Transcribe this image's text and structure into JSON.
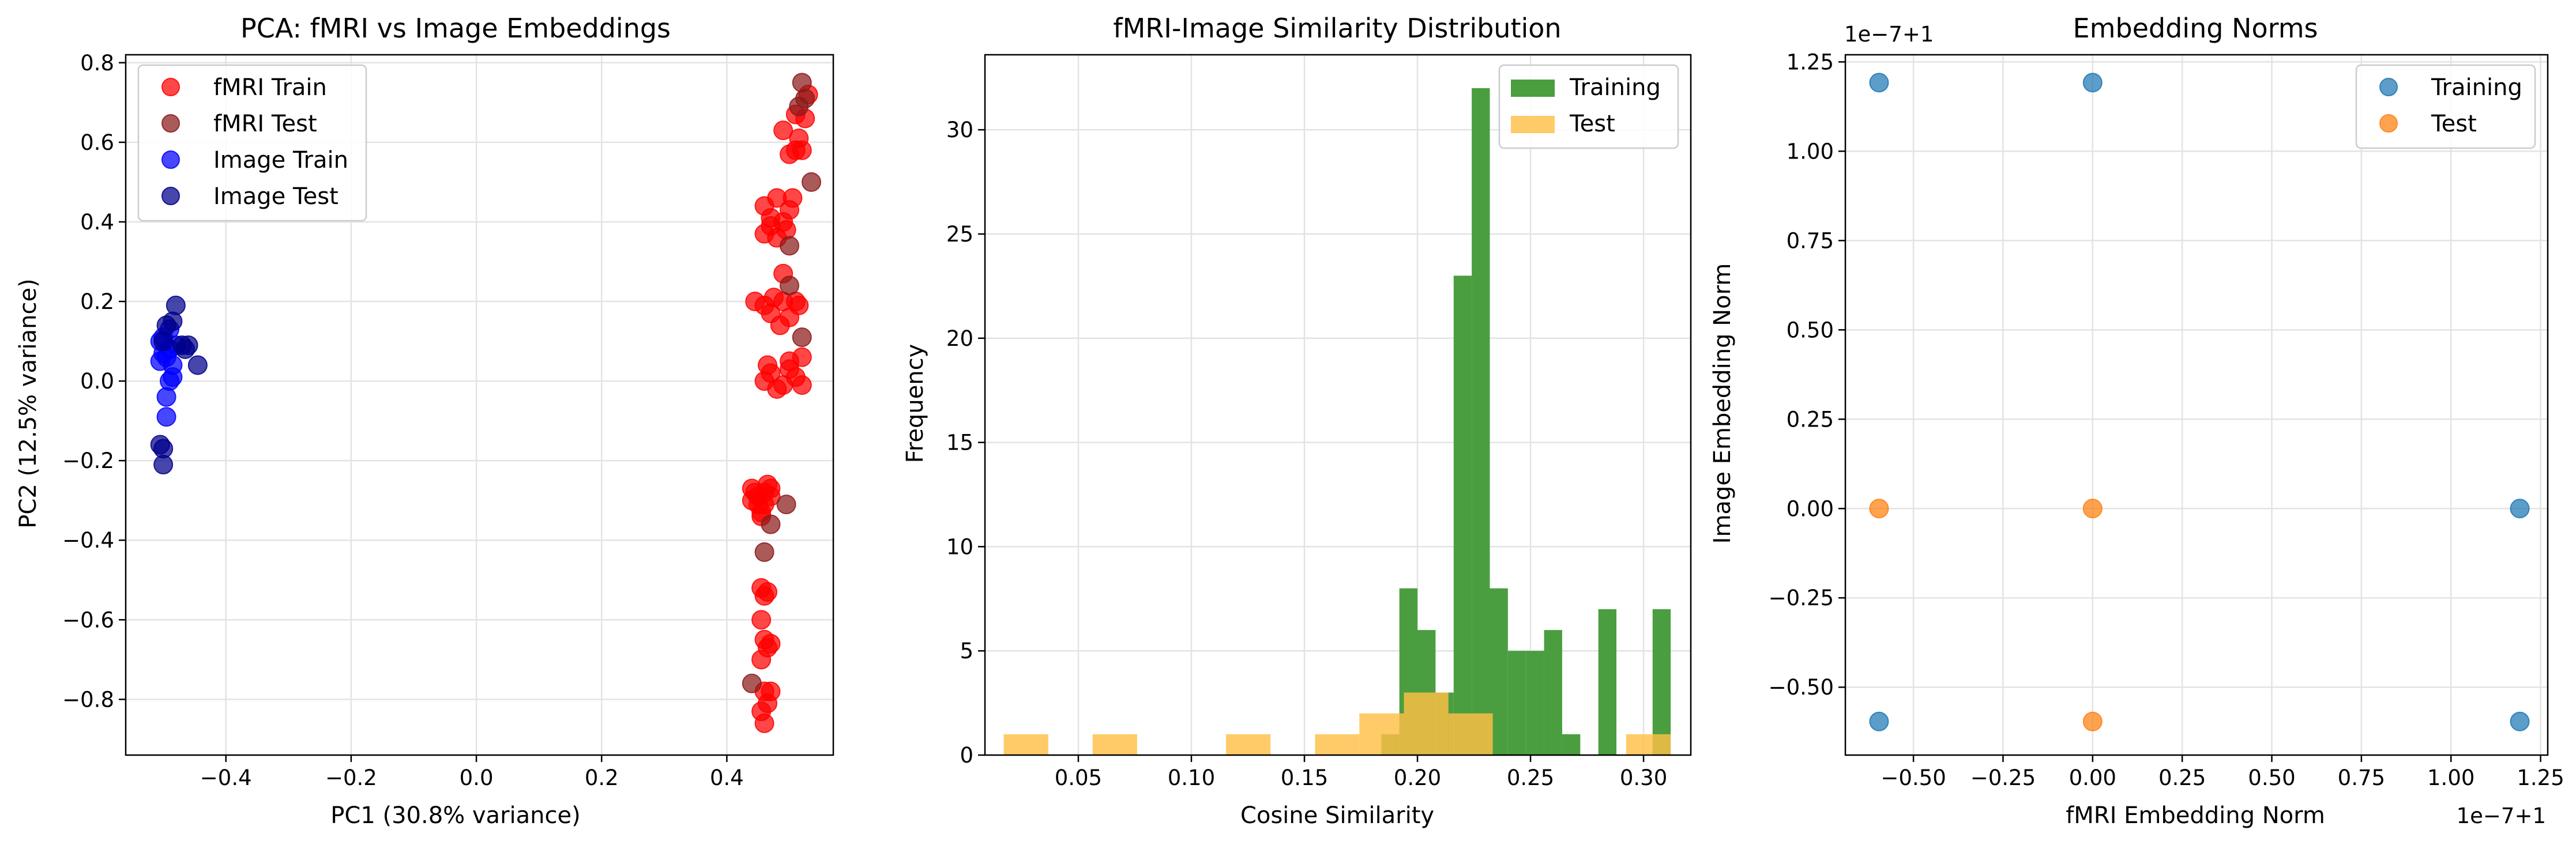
{
  "figure": {
    "charts": [
      {
        "title": "PCA: fMRI vs Image Embeddings",
        "xlabel": "PC1 (30.8% variance)",
        "ylabel": "PC2 (12.5% variance)"
      },
      {
        "title": "fMRI-Image Similarity Distribution",
        "xlabel": "Cosine Similarity",
        "ylabel": "Frequency"
      },
      {
        "title": "Embedding Norms",
        "xlabel": "fMRI Embedding Norm",
        "ylabel": "Image Embedding Norm",
        "x_offset_label": "1e−7+1",
        "y_offset_label": "1e−7+1"
      }
    ]
  },
  "chart_data": [
    {
      "type": "scatter",
      "title": "PCA: fMRI vs Image Embeddings",
      "xlabel": "PC1 (30.8% variance)",
      "ylabel": "PC2 (12.5% variance)",
      "xlim": [
        -0.56,
        0.57
      ],
      "ylim": [
        -0.94,
        0.82
      ],
      "xticks": [
        -0.4,
        -0.2,
        0.0,
        0.2,
        0.4
      ],
      "xtick_labels": [
        "−0.4",
        "−0.2",
        "0.0",
        "0.2",
        "0.4"
      ],
      "yticks": [
        -0.8,
        -0.6,
        -0.4,
        -0.2,
        0.0,
        0.2,
        0.4,
        0.6,
        0.8
      ],
      "ytick_labels": [
        "−0.8",
        "−0.6",
        "−0.4",
        "−0.2",
        "0.0",
        "0.2",
        "0.4",
        "0.6",
        "0.8"
      ],
      "grid": true,
      "legend_position": "top-left",
      "series": [
        {
          "name": "fMRI Train",
          "color": "#ff0000",
          "points": [
            [
              0.465,
              0.04
            ],
            [
              0.5,
              0.05
            ],
            [
              0.52,
              0.06
            ],
            [
              0.47,
              0.02
            ],
            [
              0.51,
              0.01
            ],
            [
              0.49,
              -0.01
            ],
            [
              0.48,
              -0.02
            ],
            [
              0.52,
              -0.01
            ],
            [
              0.5,
              0.03
            ],
            [
              0.46,
              0.0
            ],
            [
              0.445,
              0.2
            ],
            [
              0.46,
              0.19
            ],
            [
              0.475,
              0.21
            ],
            [
              0.49,
              0.2
            ],
            [
              0.51,
              0.2
            ],
            [
              0.5,
              0.16
            ],
            [
              0.485,
              0.14
            ],
            [
              0.515,
              0.19
            ],
            [
              0.47,
              0.17
            ],
            [
              0.49,
              0.27
            ],
            [
              0.46,
              0.37
            ],
            [
              0.47,
              0.39
            ],
            [
              0.48,
              0.36
            ],
            [
              0.49,
              0.4
            ],
            [
              0.5,
              0.43
            ],
            [
              0.505,
              0.46
            ],
            [
              0.47,
              0.41
            ],
            [
              0.46,
              0.44
            ],
            [
              0.48,
              0.46
            ],
            [
              0.495,
              0.38
            ],
            [
              0.5,
              0.57
            ],
            [
              0.51,
              0.58
            ],
            [
              0.52,
              0.58
            ],
            [
              0.49,
              0.63
            ],
            [
              0.525,
              0.66
            ],
            [
              0.53,
              0.72
            ],
            [
              0.51,
              0.67
            ],
            [
              0.515,
              0.61
            ],
            [
              0.44,
              -0.27
            ],
            [
              0.45,
              -0.29
            ],
            [
              0.46,
              -0.31
            ],
            [
              0.47,
              -0.29
            ],
            [
              0.455,
              -0.34
            ],
            [
              0.445,
              -0.28
            ],
            [
              0.465,
              -0.26
            ],
            [
              0.45,
              -0.31
            ],
            [
              0.47,
              -0.27
            ],
            [
              0.44,
              -0.3
            ],
            [
              0.46,
              -0.28
            ],
            [
              0.455,
              -0.33
            ],
            [
              0.455,
              -0.52
            ],
            [
              0.46,
              -0.54
            ],
            [
              0.465,
              -0.53
            ],
            [
              0.455,
              -0.6
            ],
            [
              0.46,
              -0.65
            ],
            [
              0.465,
              -0.67
            ],
            [
              0.47,
              -0.66
            ],
            [
              0.455,
              -0.7
            ],
            [
              0.46,
              -0.78
            ],
            [
              0.47,
              -0.78
            ],
            [
              0.455,
              -0.83
            ],
            [
              0.46,
              -0.86
            ],
            [
              0.465,
              -0.81
            ]
          ]
        },
        {
          "name": "fMRI Test",
          "color": "#8b1a1a",
          "points": [
            [
              0.52,
              0.75
            ],
            [
              0.515,
              0.69
            ],
            [
              0.535,
              0.5
            ],
            [
              0.5,
              0.34
            ],
            [
              0.5,
              0.24
            ],
            [
              0.52,
              0.11
            ],
            [
              0.495,
              -0.31
            ],
            [
              0.47,
              -0.36
            ],
            [
              0.46,
              -0.43
            ],
            [
              0.44,
              -0.76
            ],
            [
              0.525,
              0.71
            ]
          ]
        },
        {
          "name": "Image Train",
          "color": "#0000ff",
          "points": [
            [
              -0.505,
              0.05
            ],
            [
              -0.5,
              0.07
            ],
            [
              -0.495,
              0.06
            ],
            [
              -0.49,
              0.08
            ],
            [
              -0.485,
              0.04
            ],
            [
              -0.49,
              0.0
            ],
            [
              -0.495,
              -0.04
            ],
            [
              -0.495,
              -0.09
            ],
            [
              -0.5,
              0.11
            ],
            [
              -0.49,
              0.13
            ],
            [
              -0.48,
              0.09
            ],
            [
              -0.505,
              0.1
            ],
            [
              -0.485,
              0.01
            ]
          ]
        },
        {
          "name": "Image Test",
          "color": "#00008b",
          "points": [
            [
              -0.48,
              0.19
            ],
            [
              -0.485,
              0.15
            ],
            [
              -0.47,
              0.09
            ],
            [
              -0.465,
              0.08
            ],
            [
              -0.46,
              0.09
            ],
            [
              -0.445,
              0.04
            ],
            [
              -0.5,
              0.1
            ],
            [
              -0.495,
              0.14
            ],
            [
              -0.5,
              -0.17
            ],
            [
              -0.505,
              -0.16
            ],
            [
              -0.5,
              -0.21
            ]
          ]
        }
      ]
    },
    {
      "type": "bar",
      "title": "fMRI-Image Similarity Distribution",
      "xlabel": "Cosine Similarity",
      "ylabel": "Frequency",
      "xlim": [
        0.0087,
        0.3209
      ],
      "ylim": [
        0,
        33.6
      ],
      "xticks": [
        0.05,
        0.1,
        0.15,
        0.2,
        0.25,
        0.3
      ],
      "xtick_labels": [
        "0.05",
        "0.10",
        "0.15",
        "0.20",
        "0.25",
        "0.30"
      ],
      "yticks": [
        0,
        5,
        10,
        15,
        20,
        25,
        30
      ],
      "ytick_labels": [
        "0",
        "5",
        "10",
        "15",
        "20",
        "25",
        "30"
      ],
      "grid": true,
      "legend_position": "top-right",
      "series": [
        {
          "name": "Training",
          "color": "#4a9e3f",
          "bins": [
            [
              0.184,
              0.192,
              1
            ],
            [
              0.192,
              0.2,
              8
            ],
            [
              0.2,
              0.208,
              6
            ],
            [
              0.208,
              0.216,
              3
            ],
            [
              0.216,
              0.224,
              23
            ],
            [
              0.224,
              0.232,
              32
            ],
            [
              0.232,
              0.24,
              8
            ],
            [
              0.24,
              0.248,
              5
            ],
            [
              0.248,
              0.256,
              5
            ],
            [
              0.256,
              0.264,
              6
            ],
            [
              0.264,
              0.272,
              1
            ],
            [
              0.28,
              0.288,
              7
            ],
            [
              0.304,
              0.312,
              7
            ]
          ]
        },
        {
          "name": "Test",
          "color": "#ffbf47",
          "bins": [
            [
              0.017,
              0.0367,
              1
            ],
            [
              0.0563,
              0.076,
              1
            ],
            [
              0.1153,
              0.135,
              1
            ],
            [
              0.1547,
              0.1743,
              1
            ],
            [
              0.1743,
              0.194,
              2
            ],
            [
              0.194,
              0.2137,
              3
            ],
            [
              0.2137,
              0.2333,
              2
            ],
            [
              0.2923,
              0.312,
              1
            ]
          ]
        }
      ]
    },
    {
      "type": "scatter",
      "title": "Embedding Norms",
      "xlabel": "fMRI Embedding Norm",
      "ylabel": "Image Embedding Norm",
      "x_offset": "1e−7+1",
      "y_offset": "1e−7+1",
      "xlim": [
        -0.69,
        1.27
      ],
      "ylim": [
        -0.69,
        1.27
      ],
      "xticks": [
        -0.5,
        -0.25,
        0.0,
        0.25,
        0.5,
        0.75,
        1.0,
        1.25
      ],
      "xtick_labels": [
        "−0.50",
        "−0.25",
        "0.00",
        "0.25",
        "0.50",
        "0.75",
        "1.00",
        "1.25"
      ],
      "yticks": [
        -0.5,
        -0.25,
        0.0,
        0.25,
        0.5,
        0.75,
        1.0,
        1.25
      ],
      "ytick_labels": [
        "−0.50",
        "−0.25",
        "0.00",
        "0.25",
        "0.50",
        "0.75",
        "1.00",
        "1.25"
      ],
      "grid": true,
      "legend_position": "top-right",
      "series": [
        {
          "name": "Training",
          "color": "#1f77b4",
          "points": [
            [
              -0.596,
              1.192
            ],
            [
              0.0,
              1.192
            ],
            [
              1.192,
              0.0
            ],
            [
              -0.596,
              -0.596
            ],
            [
              1.192,
              -0.596
            ]
          ]
        },
        {
          "name": "Test",
          "color": "#ff7f0e",
          "points": [
            [
              -0.596,
              0.0
            ],
            [
              0.0,
              0.0
            ],
            [
              0.0,
              -0.596
            ]
          ]
        }
      ]
    }
  ]
}
